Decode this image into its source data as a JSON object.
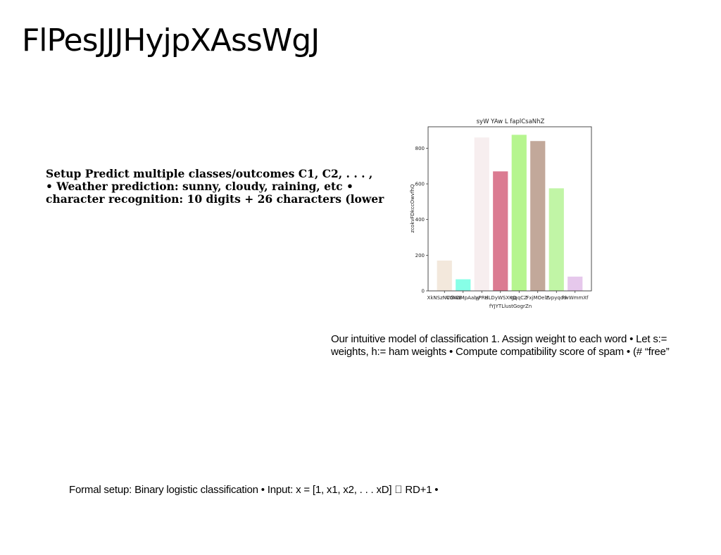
{
  "slide": {
    "title": "FlPesJJJHyjpXAssWgJ"
  },
  "setup": {
    "lines": [
      "Setup Predict multiple classes/outcomes C1, C2, . . . ,",
      "• Weather prediction: sunny, cloudy, raining, etc •",
      "character recognition: 10 digits + 26 characters (lower"
    ]
  },
  "intuitive": {
    "lines": [
      "Our intuitive model of classification 1. Assign weight to each word • Let s:=",
      "weights, h:= ham weights • Compute compatibility score of spam • (# “free”"
    ]
  },
  "formal": {
    "text": "Formal setup: Binary logistic classification • Input: x = [1, x1, x2, . . . xD] ￿ RD+1 •"
  },
  "chart_data": {
    "type": "bar",
    "title": "syW YAw L faplCsaNhZ",
    "xlabel": "fYJYTLlustGogrZn",
    "ylabel": "zcokvFDkccOwvfhQ",
    "categories": [
      "XkNSzNVGWB",
      "CdMbMpAaby",
      "yPRd",
      "HLDyWSXKQ",
      "gqqCZ",
      "FxjMOelZ",
      "rvpyqdd",
      "FwWmmXf"
    ],
    "values": [
      170,
      65,
      860,
      670,
      875,
      840,
      575,
      80
    ],
    "colors": [
      "#f3e8dc",
      "#87ffe7",
      "#f7eeef",
      "#db7b91",
      "#b6f58f",
      "#c2a89a",
      "#c1f5a6",
      "#e6c8ec"
    ],
    "ylim": [
      0,
      920
    ],
    "yticks": [
      0,
      200,
      400,
      600,
      800
    ],
    "grid": false
  }
}
